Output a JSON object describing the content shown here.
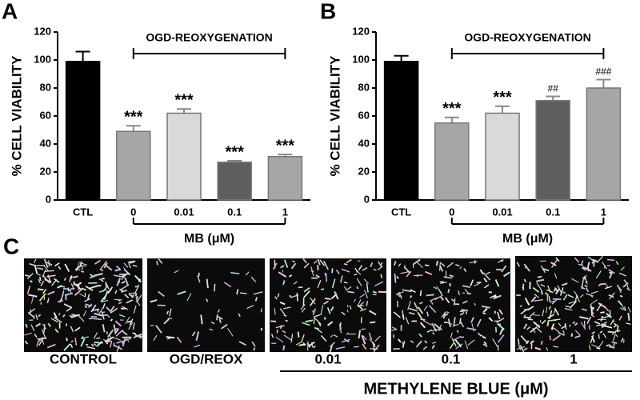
{
  "chart_data": [
    {
      "type": "bar",
      "panel": "A",
      "ylabel": "% CELL VIABILITY",
      "annotation": "OGD-REOXYGENATION",
      "xlabel": "MB (μM)",
      "categories": [
        "CTL",
        "0",
        "0.01",
        "0.1",
        "1"
      ],
      "values": [
        99,
        49,
        62,
        27,
        31
      ],
      "errors": [
        7,
        4,
        3,
        1,
        1.5
      ],
      "significance": [
        null,
        "***",
        "***",
        "***",
        "***"
      ],
      "colors": [
        "#000000",
        "#a6a6a6",
        "#d9d9d9",
        "#5e5e5e",
        "#a6a6a6"
      ],
      "ylim": [
        0,
        120
      ],
      "yticks": [
        0,
        20,
        40,
        60,
        80,
        100,
        120
      ]
    },
    {
      "type": "bar",
      "panel": "B",
      "ylabel": "% CELL VIABILITY",
      "annotation": "OGD-REOXYGENATION",
      "xlabel": "MB (μM)",
      "categories": [
        "CTL",
        "0",
        "0.01",
        "0.1",
        "1"
      ],
      "values": [
        99,
        55,
        62,
        71,
        80
      ],
      "errors": [
        4,
        4,
        5,
        3,
        6
      ],
      "significance": [
        null,
        "***",
        "***",
        "##",
        "###"
      ],
      "colors": [
        "#000000",
        "#a6a6a6",
        "#d9d9d9",
        "#5e5e5e",
        "#a6a6a6"
      ],
      "ylim": [
        0,
        120
      ],
      "yticks": [
        0,
        20,
        40,
        60,
        80,
        100,
        120
      ]
    }
  ],
  "panel_c": {
    "label": "C",
    "captions": [
      "CONTROL",
      "OGD/REOX",
      "0.01",
      "0.1",
      "1"
    ],
    "group_label": "METHYLENE BLUE (μM)"
  }
}
